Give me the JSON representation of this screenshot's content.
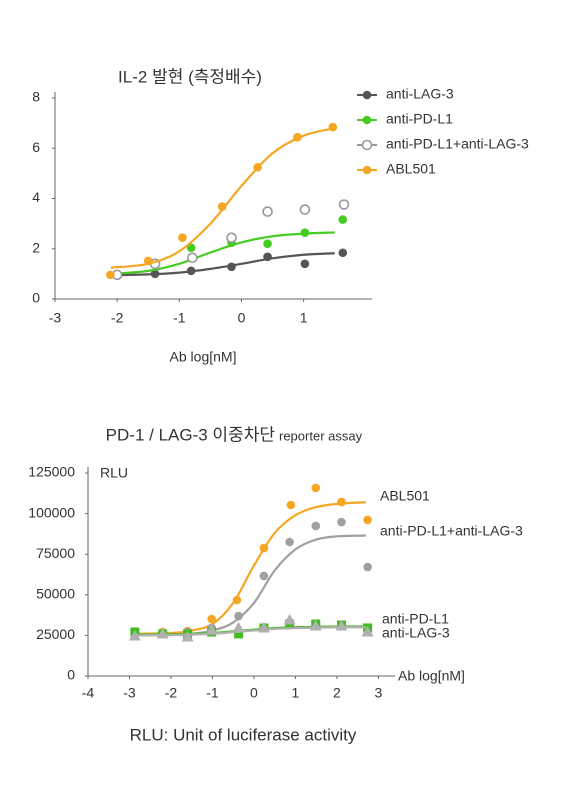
{
  "chart_data": [
    {
      "type": "scatter",
      "title": "IL-2 발현 (측정배수)",
      "x_label": "Ab log[nM]",
      "xlim": [
        -3,
        2.1
      ],
      "xticks": [
        -3,
        -2,
        -1,
        0,
        1
      ],
      "ylim": [
        0,
        8
      ],
      "yticks": [
        0,
        2,
        4,
        6,
        8
      ],
      "legend": "right",
      "fit_x": [
        -2.1,
        -1.5,
        -1,
        -0.5,
        0,
        0.5,
        1,
        1.5
      ],
      "series": [
        {
          "name": "anti-LAG-3",
          "color": "#555555",
          "marker": "circle",
          "x": [
            -2,
            -1.39,
            -0.81,
            -0.16,
            0.42,
            1.02,
            1.63
          ],
          "values": [
            0.96,
            1.0,
            1.12,
            1.28,
            1.68,
            1.4,
            1.84
          ],
          "fit": [
            0.95,
            0.98,
            1.05,
            1.2,
            1.4,
            1.62,
            1.76,
            1.82
          ]
        },
        {
          "name": "anti-PD-L1",
          "color": "#44cc22",
          "marker": "circle",
          "x": [
            -0.81,
            -0.16,
            0.42,
            1.02,
            1.63
          ],
          "values": [
            2.04,
            2.24,
            2.2,
            2.64,
            3.16
          ],
          "fit": [
            1.0,
            1.12,
            1.4,
            1.85,
            2.25,
            2.5,
            2.6,
            2.65
          ]
        },
        {
          "name": "anti-PD-L1+anti-LAG-3",
          "color": "#999999",
          "marker": "open-circle",
          "x": [
            -2,
            -1.39,
            -0.79,
            -0.16,
            0.42,
            1.02,
            1.65
          ],
          "values": [
            0.96,
            1.4,
            1.64,
            2.44,
            3.48,
            3.56,
            3.76
          ]
        },
        {
          "name": "ABL501",
          "color": "#f5a623",
          "marker": "circle",
          "x": [
            -2.11,
            -1.5,
            -0.95,
            -0.31,
            0.26,
            0.9,
            1.47
          ],
          "values": [
            0.96,
            1.52,
            2.44,
            3.68,
            5.24,
            6.44,
            6.84
          ],
          "fit": [
            1.25,
            1.4,
            1.9,
            3.0,
            4.5,
            5.8,
            6.5,
            6.8
          ]
        }
      ]
    },
    {
      "type": "scatter",
      "title": "PD-1 / LAG-3 이중차단",
      "title_suffix": "reporter assay",
      "y_label": "RLU",
      "x_label": "Ab log[nM]",
      "footnote": "RLU: Unit of luciferase activity",
      "xlim": [
        -4,
        3.4
      ],
      "xticks": [
        -4,
        -3,
        -2,
        -1,
        0,
        1,
        2,
        3
      ],
      "ylim": [
        0,
        125000
      ],
      "yticks": [
        0,
        25000,
        50000,
        75000,
        100000,
        125000
      ],
      "legend": "line-end",
      "fit_x": [
        -2.9,
        -2,
        -1.5,
        -1,
        -0.5,
        0,
        0.5,
        1,
        1.5,
        2,
        2.7
      ],
      "series": [
        {
          "name": "ABL501",
          "color": "#f5a623",
          "marker": "circle",
          "x": [
            -2.87,
            -2.2,
            -1.6,
            -1.02,
            -0.41,
            0.24,
            0.89,
            1.49,
            2.11,
            2.74
          ],
          "values": [
            26500,
            27100,
            27700,
            35100,
            46800,
            78800,
            105300,
            115800,
            107100,
            96100
          ],
          "fit": [
            26000,
            26500,
            28000,
            32000,
            45000,
            68000,
            88000,
            99000,
            104000,
            106000,
            107000
          ]
        },
        {
          "name": "anti-PD-L1+anti-LAG-3",
          "color": "#a0a0a0",
          "marker": "circle",
          "x": [
            -2.87,
            -2.2,
            -1.6,
            -1.02,
            -0.37,
            0.24,
            0.86,
            1.49,
            2.11,
            2.74
          ],
          "values": [
            25900,
            25900,
            27100,
            29600,
            36900,
            61600,
            82500,
            92400,
            94800,
            67100
          ],
          "fit": [
            25000,
            25200,
            26000,
            28000,
            33000,
            45000,
            65000,
            78000,
            84000,
            86000,
            86500
          ]
        },
        {
          "name": "anti-PD-L1",
          "color": "#44bb22",
          "marker": "square",
          "x": [
            -2.87,
            -2.2,
            -1.6,
            -1.02,
            -0.37,
            0.24,
            0.86,
            1.49,
            2.11,
            2.74
          ],
          "values": [
            27100,
            25900,
            25900,
            27100,
            25900,
            29600,
            32000,
            32000,
            31400,
            29600
          ],
          "fit": [
            25500,
            25700,
            26000,
            26500,
            27500,
            28500,
            29500,
            30000,
            30300,
            30500,
            30500
          ]
        },
        {
          "name": "anti-LAG-3",
          "color": "#b0b0b0",
          "marker": "triangle",
          "x": [
            -2.87,
            -2.2,
            -1.6,
            -1.02,
            -0.37,
            0.24,
            0.86,
            1.49,
            2.11,
            2.74
          ],
          "values": [
            24600,
            25900,
            24000,
            28300,
            29600,
            29600,
            34500,
            30800,
            30800,
            27100
          ],
          "fit": [
            25000,
            25200,
            25500,
            26000,
            27000,
            28000,
            29000,
            29500,
            29800,
            30000,
            30000
          ]
        }
      ]
    }
  ]
}
